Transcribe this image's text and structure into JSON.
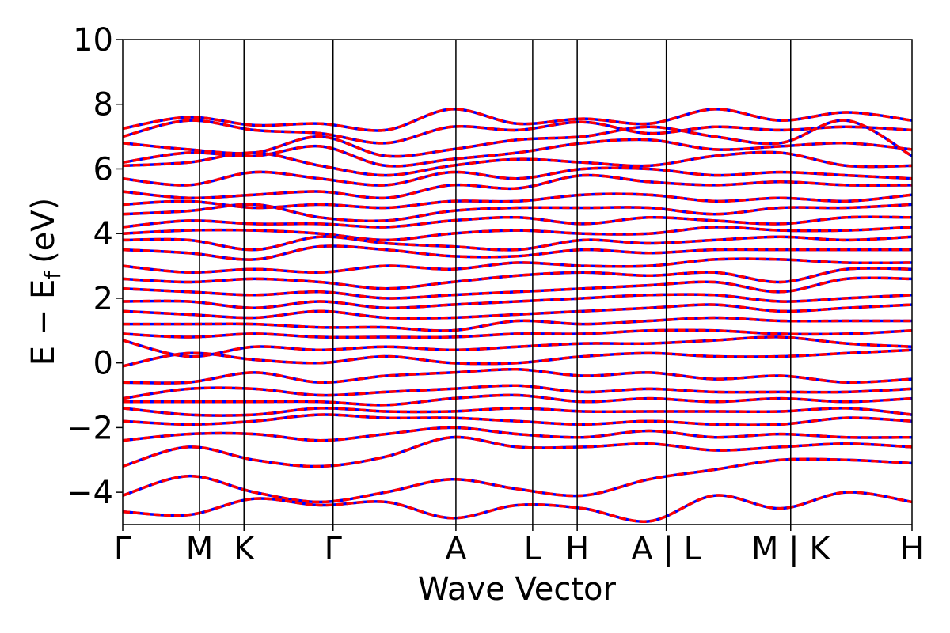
{
  "chart_data": {
    "type": "line",
    "title": "",
    "xlabel": "Wave Vector",
    "ylabel_main": "E − E",
    "ylabel_sub": "f",
    "ylabel_unit": "(eV)",
    "ylim": [
      -5,
      10
    ],
    "yticks": [
      -4,
      -2,
      0,
      2,
      4,
      6,
      8,
      10
    ],
    "ytick_labels": [
      "−4",
      "−2",
      "0",
      "2",
      "4",
      "6",
      "8",
      "10"
    ],
    "grid": false,
    "legend": "none",
    "kpath": [
      {
        "label": "Γ",
        "x": 0.0
      },
      {
        "label": "M",
        "x": 0.5
      },
      {
        "label": "K",
        "x": 0.79
      },
      {
        "label": "Γ",
        "x": 1.37
      },
      {
        "label": "A",
        "x": 2.17
      },
      {
        "label": "L",
        "x": 2.67
      },
      {
        "label": "H",
        "x": 2.96
      },
      {
        "label": "A | L",
        "x": 3.54
      },
      {
        "label": "M | K",
        "x": 4.35
      },
      {
        "label": "H",
        "x": 5.14
      }
    ],
    "series": [
      {
        "style": "solid",
        "color": "#0000ff",
        "points": []
      },
      {
        "style": "dashed",
        "color": "#ff0000",
        "points": []
      }
    ],
    "band_lines": {
      "dashed_color": "#ff0000",
      "solid_color": "#0000ff"
    },
    "bands": [
      [
        7.25,
        7.6,
        7.35,
        7.4,
        7.2,
        7.85,
        7.4,
        7.55,
        7.4,
        7.85,
        7.5,
        7.75,
        7.5
      ],
      [
        7.0,
        7.5,
        7.2,
        7.1,
        6.8,
        7.3,
        7.2,
        7.45,
        7.1,
        7.3,
        7.2,
        7.3,
        7.2
      ],
      [
        6.8,
        6.6,
        6.5,
        7.0,
        6.4,
        6.6,
        6.9,
        7.0,
        7.3,
        7.0,
        6.8,
        7.5,
        6.4
      ],
      [
        6.2,
        6.5,
        6.4,
        6.7,
        6.1,
        6.3,
        6.5,
        6.8,
        6.9,
        6.6,
        6.7,
        6.8,
        6.6
      ],
      [
        6.1,
        6.2,
        6.5,
        6.1,
        5.8,
        6.1,
        6.3,
        6.2,
        6.1,
        6.4,
        6.5,
        6.1,
        6.1
      ],
      [
        5.7,
        5.5,
        5.9,
        5.7,
        5.5,
        5.9,
        5.7,
        6.0,
        6.0,
        5.8,
        5.9,
        5.8,
        5.7
      ],
      [
        5.3,
        5.1,
        5.2,
        5.3,
        5.1,
        5.5,
        5.4,
        5.8,
        5.6,
        5.5,
        5.6,
        5.5,
        5.5
      ],
      [
        4.9,
        5.0,
        4.8,
        4.9,
        4.8,
        5.0,
        5.0,
        5.2,
        5.2,
        5.0,
        5.1,
        5.0,
        5.2
      ],
      [
        4.6,
        4.7,
        4.9,
        4.5,
        4.4,
        4.7,
        4.8,
        4.8,
        4.8,
        4.6,
        4.8,
        4.8,
        4.9
      ],
      [
        4.2,
        4.4,
        4.3,
        4.3,
        4.2,
        4.4,
        4.5,
        4.3,
        4.5,
        4.4,
        4.3,
        4.5,
        4.5
      ],
      [
        4.0,
        4.1,
        4.1,
        4.0,
        3.8,
        4.0,
        4.1,
        4.0,
        4.0,
        4.2,
        4.1,
        4.1,
        4.2
      ],
      [
        3.8,
        3.8,
        3.5,
        3.9,
        3.7,
        3.6,
        3.5,
        3.8,
        3.7,
        3.8,
        3.9,
        3.8,
        3.9
      ],
      [
        3.5,
        3.4,
        3.2,
        3.6,
        3.5,
        3.3,
        3.3,
        3.5,
        3.4,
        3.5,
        3.5,
        3.5,
        3.5
      ],
      [
        3.0,
        2.8,
        2.9,
        2.8,
        3.0,
        2.9,
        3.1,
        3.0,
        3.0,
        3.2,
        3.2,
        3.1,
        3.1
      ],
      [
        2.6,
        2.5,
        2.6,
        2.5,
        2.3,
        2.5,
        2.7,
        2.8,
        2.7,
        2.8,
        2.5,
        2.9,
        2.9
      ],
      [
        2.3,
        2.2,
        2.1,
        2.2,
        2.0,
        2.1,
        2.2,
        2.3,
        2.4,
        2.5,
        2.2,
        2.6,
        2.6
      ],
      [
        1.9,
        1.9,
        1.7,
        1.9,
        1.7,
        1.8,
        1.9,
        2.0,
        2.1,
        2.1,
        1.9,
        2.0,
        2.1
      ],
      [
        1.6,
        1.5,
        1.4,
        1.6,
        1.4,
        1.4,
        1.5,
        1.6,
        1.7,
        1.8,
        1.6,
        1.7,
        1.8
      ],
      [
        1.2,
        1.2,
        1.2,
        1.1,
        1.1,
        1.0,
        1.3,
        1.2,
        1.3,
        1.4,
        1.3,
        1.3,
        1.3
      ],
      [
        0.9,
        0.8,
        0.9,
        0.8,
        0.8,
        0.8,
        0.9,
        0.9,
        1.0,
        1.0,
        0.9,
        0.9,
        1.0
      ],
      [
        0.7,
        0.2,
        0.5,
        0.4,
        0.5,
        0.4,
        0.5,
        0.6,
        0.6,
        0.7,
        0.8,
        0.6,
        0.5
      ],
      [
        -0.1,
        0.3,
        0.1,
        0.0,
        0.2,
        0.0,
        0.0,
        0.2,
        0.3,
        0.2,
        0.2,
        0.3,
        0.4
      ],
      [
        -0.6,
        -0.6,
        -0.3,
        -0.6,
        -0.4,
        -0.3,
        -0.2,
        -0.4,
        -0.3,
        -0.5,
        -0.4,
        -0.6,
        -0.5
      ],
      [
        -1.1,
        -0.8,
        -0.8,
        -1.0,
        -0.9,
        -0.8,
        -0.7,
        -0.9,
        -0.8,
        -0.9,
        -0.9,
        -0.9,
        -0.8
      ],
      [
        -1.2,
        -1.2,
        -1.2,
        -1.2,
        -1.3,
        -1.1,
        -1.0,
        -1.2,
        -1.1,
        -1.2,
        -1.1,
        -1.2,
        -1.1
      ],
      [
        -1.4,
        -1.6,
        -1.6,
        -1.4,
        -1.5,
        -1.5,
        -1.4,
        -1.5,
        -1.5,
        -1.5,
        -1.5,
        -1.4,
        -1.6
      ],
      [
        -1.8,
        -1.9,
        -1.8,
        -1.6,
        -1.7,
        -1.7,
        -1.8,
        -1.9,
        -1.8,
        -1.9,
        -1.9,
        -1.7,
        -1.8
      ],
      [
        -2.4,
        -2.2,
        -2.2,
        -2.4,
        -2.2,
        -2.0,
        -2.2,
        -2.3,
        -2.1,
        -2.3,
        -2.2,
        -2.3,
        -2.3
      ],
      [
        -3.2,
        -2.6,
        -3.0,
        -3.2,
        -2.9,
        -2.3,
        -2.6,
        -2.6,
        -2.5,
        -2.7,
        -2.6,
        -2.5,
        -2.6
      ],
      [
        -4.1,
        -3.5,
        -4.0,
        -4.3,
        -4.0,
        -3.6,
        -3.9,
        -4.1,
        -3.6,
        -3.3,
        -3.0,
        -3.0,
        -3.1
      ],
      [
        -4.6,
        -4.7,
        -4.2,
        -4.4,
        -4.3,
        -4.8,
        -4.4,
        -4.5,
        -4.9,
        -4.1,
        -4.5,
        -4.0,
        -4.3
      ]
    ]
  }
}
